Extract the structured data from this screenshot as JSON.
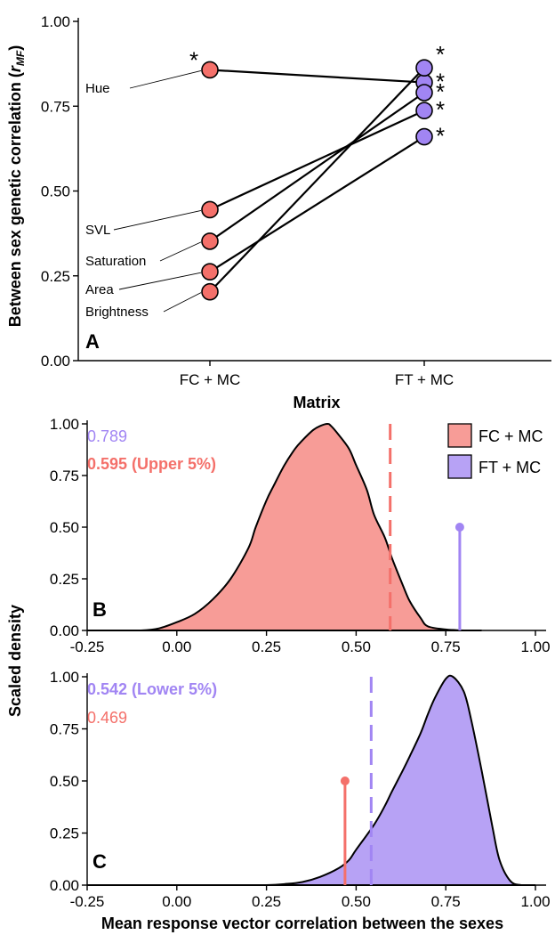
{
  "colors": {
    "fc_mc": "#F4706A",
    "fc_mc_fill": "#F79C97",
    "ft_mc": "#A185F3",
    "ft_mc_fill": "#B7A2F5",
    "line": "#000000"
  },
  "shared_ylabel": "Scaled density",
  "chart_data": [
    {
      "panel": "A",
      "type": "line",
      "xlabel": "Matrix",
      "ylabel_main": "Between sex genetic correlation (",
      "ylabel_sym": "r",
      "ylabel_sub": "MF",
      "ylabel_close": ")",
      "ylim": [
        0,
        1.0
      ],
      "yticks": [
        0.0,
        0.25,
        0.5,
        0.75,
        1.0
      ],
      "ytick_labels": [
        "0.00",
        "0.25",
        "0.50",
        "0.75",
        "1.00"
      ],
      "categories": [
        "FC + MC",
        "FT + MC"
      ],
      "series": [
        {
          "name": "Hue",
          "values": [
            0.857,
            0.82
          ],
          "sig": [
            "*",
            "*"
          ]
        },
        {
          "name": "SVL",
          "values": [
            0.445,
            0.737
          ],
          "sig": [
            "",
            "*"
          ]
        },
        {
          "name": "Saturation",
          "values": [
            0.352,
            0.79
          ],
          "sig": [
            "",
            "*"
          ]
        },
        {
          "name": "Area",
          "values": [
            0.262,
            0.66
          ],
          "sig": [
            "",
            "*"
          ]
        },
        {
          "name": "Brightness",
          "values": [
            0.203,
            0.863
          ],
          "sig": [
            "",
            "*"
          ]
        }
      ],
      "stars_right": [
        "*",
        "*",
        "*",
        "*",
        "*"
      ],
      "grid": false
    },
    {
      "panel": "B",
      "type": "area",
      "xlabel": "",
      "xlim": [
        -0.25,
        1.0
      ],
      "ylim": [
        0,
        1.0
      ],
      "xticks": [
        -0.25,
        0.0,
        0.25,
        0.5,
        0.75,
        1.0
      ],
      "xtick_labels": [
        "-0.25",
        "0.00",
        "0.25",
        "0.50",
        "0.75",
        "1.00"
      ],
      "yticks": [
        0.0,
        0.25,
        0.5,
        0.75,
        1.0
      ],
      "ytick_labels": [
        "0.00",
        "0.25",
        "0.50",
        "0.75",
        "1.00"
      ],
      "density_series": "FC + MC",
      "density_x": [
        -0.25,
        -0.2,
        -0.15,
        -0.1,
        -0.05,
        0.0,
        0.05,
        0.1,
        0.15,
        0.2,
        0.22,
        0.25,
        0.27,
        0.3,
        0.33,
        0.35,
        0.38,
        0.4,
        0.42,
        0.43,
        0.45,
        0.48,
        0.5,
        0.53,
        0.55,
        0.58,
        0.6,
        0.63,
        0.65,
        0.68,
        0.7,
        0.75,
        0.8,
        0.85
      ],
      "density_y": [
        0.0,
        0.0,
        0.0,
        0.0,
        0.01,
        0.04,
        0.08,
        0.15,
        0.25,
        0.4,
        0.5,
        0.63,
        0.7,
        0.8,
        0.88,
        0.92,
        0.97,
        0.99,
        1.0,
        0.99,
        0.95,
        0.88,
        0.8,
        0.68,
        0.56,
        0.45,
        0.35,
        0.22,
        0.14,
        0.06,
        0.02,
        0.005,
        0.0,
        0.0
      ],
      "threshold": 0.595,
      "threshold_label": "0.595 (Upper 5%)",
      "observed": {
        "series": "FT + MC",
        "x": 0.789,
        "y": 0.5,
        "label": "0.789"
      },
      "legend": [
        {
          "name": "FC + MC",
          "color_key": "fc_mc_fill"
        },
        {
          "name": "FT + MC",
          "color_key": "ft_mc_fill"
        }
      ],
      "legend_position": "top-right"
    },
    {
      "panel": "C",
      "type": "area",
      "xlabel": "Mean response vector correlation between the sexes",
      "xlim": [
        -0.25,
        1.0
      ],
      "ylim": [
        0,
        1.0
      ],
      "xticks": [
        -0.25,
        0.0,
        0.25,
        0.5,
        0.75,
        1.0
      ],
      "xtick_labels": [
        "-0.25",
        "0.00",
        "0.25",
        "0.50",
        "0.75",
        "1.00"
      ],
      "yticks": [
        0.0,
        0.25,
        0.5,
        0.75,
        1.0
      ],
      "ytick_labels": [
        "0.00",
        "0.25",
        "0.50",
        "0.75",
        "1.00"
      ],
      "density_series": "FT + MC",
      "density_x": [
        -0.25,
        0.2,
        0.25,
        0.3,
        0.35,
        0.4,
        0.45,
        0.48,
        0.5,
        0.55,
        0.58,
        0.6,
        0.63,
        0.65,
        0.68,
        0.7,
        0.72,
        0.75,
        0.77,
        0.8,
        0.82,
        0.85,
        0.88,
        0.9,
        0.93,
        0.96,
        1.0
      ],
      "density_y": [
        0.0,
        0.0,
        0.0,
        0.005,
        0.015,
        0.04,
        0.08,
        0.12,
        0.17,
        0.29,
        0.38,
        0.45,
        0.55,
        0.62,
        0.73,
        0.82,
        0.9,
        0.99,
        1.0,
        0.93,
        0.8,
        0.55,
        0.28,
        0.12,
        0.02,
        0.0,
        0.0
      ],
      "threshold": 0.542,
      "threshold_label": "0.542 (Lower 5%)",
      "observed": {
        "series": "FC + MC",
        "x": 0.469,
        "y": 0.5,
        "label": "0.469"
      }
    }
  ]
}
